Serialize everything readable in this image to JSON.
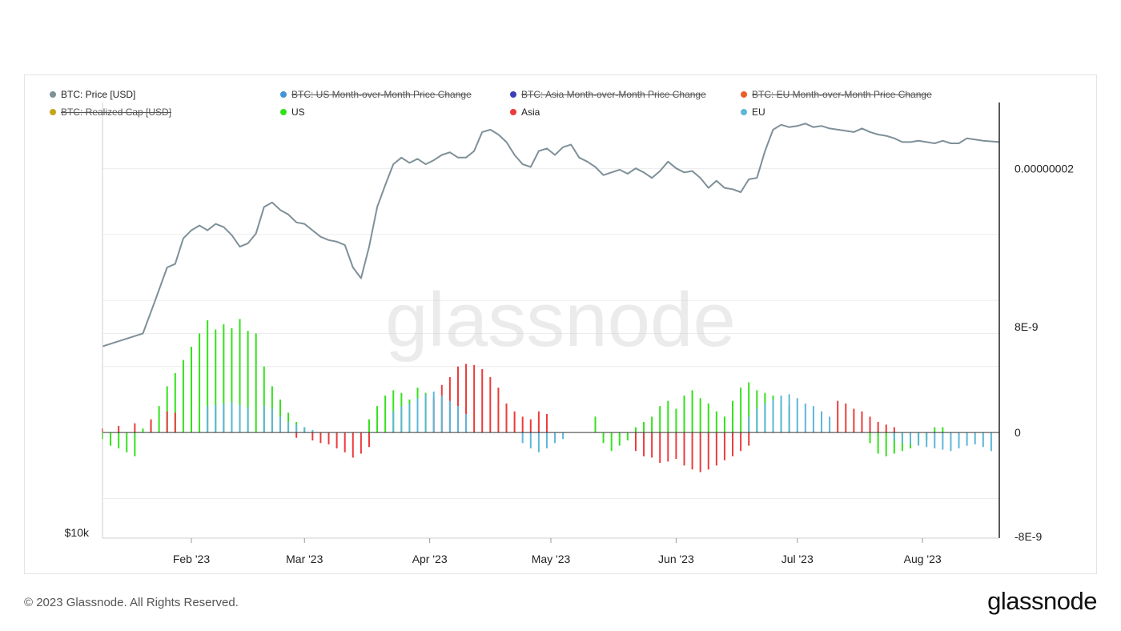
{
  "colors": {
    "price": "#7e9098",
    "us": "#33e21b",
    "asia": "#ec3b3b",
    "eu": "#5db7d9",
    "us_mom": "#4393d9",
    "asia_mom": "#3c3fb5",
    "eu_mom": "#eb5f26",
    "realized": "#c4a519",
    "zero_line": "#3a3a3a"
  },
  "watermark": "glassnode",
  "footer": {
    "copyright": "© 2023 Glassnode. All Rights Reserved.",
    "logo": "glassnode"
  },
  "chart_data": {
    "type": "bar+line",
    "legend": [
      {
        "label": "BTC: Price [USD]",
        "color_key": "price",
        "active": true
      },
      {
        "label": "BTC: US Month-over-Month Price Change",
        "color_key": "us_mom",
        "active": false
      },
      {
        "label": "BTC: Asia Month-over-Month Price Change",
        "color_key": "asia_mom",
        "active": false
      },
      {
        "label": "BTC: EU Month-over-Month Price Change",
        "color_key": "eu_mom",
        "active": false
      },
      {
        "label": "BTC: Realized Cap [USD]",
        "color_key": "realized",
        "active": false
      },
      {
        "label": "US",
        "color_key": "us",
        "active": true
      },
      {
        "label": "Asia",
        "color_key": "asia",
        "active": true
      },
      {
        "label": "EU",
        "color_key": "eu",
        "active": true
      }
    ],
    "x_ticks": [
      "Feb '23",
      "Mar '23",
      "Apr '23",
      "May '23",
      "Jun '23",
      "Jul '23",
      "Aug '23"
    ],
    "x_tick_day": [
      22,
      50,
      81,
      111,
      142,
      172,
      203
    ],
    "x_range_days": [
      0,
      222
    ],
    "left_axis": {
      "label": "$10k",
      "scale": "log",
      "range": [
        10000,
        32500
      ]
    },
    "right_axis": {
      "ticks": [
        "0.00000002",
        "8E-9",
        "0",
        "-8E-9"
      ],
      "tick_values": [
        2e-08,
        8e-09,
        0,
        -8e-09
      ],
      "range": [
        -8e-09,
        2.5e-08
      ]
    },
    "series": [
      {
        "name": "BTC: Price [USD]",
        "type": "line",
        "axis": "left",
        "color_key": "price",
        "points": [
          [
            0,
            16800
          ],
          [
            10,
            17400
          ],
          [
            13,
            19000
          ],
          [
            16,
            20800
          ],
          [
            18,
            21000
          ],
          [
            20,
            22500
          ],
          [
            22,
            23000
          ],
          [
            24,
            23300
          ],
          [
            26,
            23000
          ],
          [
            28,
            23400
          ],
          [
            30,
            23200
          ],
          [
            32,
            22700
          ],
          [
            34,
            22000
          ],
          [
            36,
            22200
          ],
          [
            38,
            22800
          ],
          [
            40,
            24500
          ],
          [
            42,
            24800
          ],
          [
            44,
            24300
          ],
          [
            46,
            24000
          ],
          [
            48,
            23500
          ],
          [
            50,
            23400
          ],
          [
            52,
            23000
          ],
          [
            54,
            22600
          ],
          [
            56,
            22400
          ],
          [
            58,
            22300
          ],
          [
            60,
            22100
          ],
          [
            62,
            20800
          ],
          [
            64,
            20200
          ],
          [
            66,
            22000
          ],
          [
            68,
            24500
          ],
          [
            70,
            26000
          ],
          [
            72,
            27500
          ],
          [
            74,
            28000
          ],
          [
            76,
            27600
          ],
          [
            78,
            27900
          ],
          [
            80,
            27500
          ],
          [
            82,
            27800
          ],
          [
            84,
            28200
          ],
          [
            86,
            28400
          ],
          [
            88,
            28000
          ],
          [
            90,
            28000
          ],
          [
            92,
            28500
          ],
          [
            94,
            30000
          ],
          [
            96,
            30200
          ],
          [
            98,
            29800
          ],
          [
            100,
            29200
          ],
          [
            102,
            28200
          ],
          [
            104,
            27500
          ],
          [
            106,
            27300
          ],
          [
            108,
            28500
          ],
          [
            110,
            28700
          ],
          [
            112,
            28200
          ],
          [
            114,
            28800
          ],
          [
            116,
            29000
          ],
          [
            118,
            28000
          ],
          [
            120,
            27700
          ],
          [
            122,
            27300
          ],
          [
            124,
            26700
          ],
          [
            126,
            26900
          ],
          [
            128,
            27100
          ],
          [
            130,
            26800
          ],
          [
            132,
            27200
          ],
          [
            134,
            26900
          ],
          [
            136,
            26500
          ],
          [
            138,
            27000
          ],
          [
            140,
            27700
          ],
          [
            142,
            27200
          ],
          [
            144,
            26900
          ],
          [
            146,
            27000
          ],
          [
            148,
            26500
          ],
          [
            150,
            25800
          ],
          [
            152,
            26300
          ],
          [
            154,
            25800
          ],
          [
            156,
            25700
          ],
          [
            158,
            25500
          ],
          [
            160,
            26400
          ],
          [
            162,
            26500
          ],
          [
            164,
            28500
          ],
          [
            166,
            30200
          ],
          [
            168,
            30600
          ],
          [
            170,
            30400
          ],
          [
            172,
            30500
          ],
          [
            174,
            30700
          ],
          [
            176,
            30400
          ],
          [
            178,
            30500
          ],
          [
            180,
            30300
          ],
          [
            182,
            30200
          ],
          [
            184,
            30100
          ],
          [
            186,
            30000
          ],
          [
            188,
            30300
          ],
          [
            190,
            30000
          ],
          [
            192,
            29800
          ],
          [
            194,
            29700
          ],
          [
            196,
            29500
          ],
          [
            198,
            29200
          ],
          [
            200,
            29200
          ],
          [
            202,
            29300
          ],
          [
            204,
            29200
          ],
          [
            206,
            29100
          ],
          [
            208,
            29300
          ],
          [
            210,
            29100
          ],
          [
            212,
            29100
          ],
          [
            214,
            29500
          ],
          [
            216,
            29400
          ],
          [
            218,
            29300
          ],
          [
            222,
            29200
          ]
        ]
      },
      {
        "name": "US",
        "type": "bar",
        "axis": "right",
        "color_key": "us",
        "values_by_day": [
          [
            0,
            -5e-10
          ],
          [
            2,
            -1e-09
          ],
          [
            4,
            -1.2e-09
          ],
          [
            6,
            -1.5e-09
          ],
          [
            8,
            -1.8e-09
          ],
          [
            10,
            3e-10
          ],
          [
            12,
            8e-10
          ],
          [
            14,
            2e-09
          ],
          [
            16,
            3.5e-09
          ],
          [
            18,
            4.5e-09
          ],
          [
            20,
            5.5e-09
          ],
          [
            22,
            6.5e-09
          ],
          [
            24,
            7.5e-09
          ],
          [
            26,
            8.5e-09
          ],
          [
            28,
            7.8e-09
          ],
          [
            30,
            8.2e-09
          ],
          [
            32,
            7.9e-09
          ],
          [
            34,
            8.6e-09
          ],
          [
            36,
            7.7e-09
          ],
          [
            38,
            7.5e-09
          ],
          [
            40,
            5e-09
          ],
          [
            42,
            3.5e-09
          ],
          [
            44,
            2.5e-09
          ],
          [
            46,
            1.5e-09
          ],
          [
            48,
            8e-10
          ],
          [
            50,
            4e-10
          ],
          [
            66,
            1e-09
          ],
          [
            68,
            2e-09
          ],
          [
            70,
            2.8e-09
          ],
          [
            72,
            3.2e-09
          ],
          [
            74,
            3e-09
          ],
          [
            76,
            2.5e-09
          ],
          [
            78,
            3.4e-09
          ],
          [
            80,
            3e-09
          ],
          [
            122,
            1.2e-09
          ],
          [
            124,
            -8e-10
          ],
          [
            126,
            -1.4e-09
          ],
          [
            128,
            -1e-09
          ],
          [
            130,
            -6e-10
          ],
          [
            132,
            4e-10
          ],
          [
            134,
            8e-10
          ],
          [
            136,
            1.2e-09
          ],
          [
            138,
            2e-09
          ],
          [
            140,
            2.4e-09
          ],
          [
            142,
            1.8e-09
          ],
          [
            144,
            2.8e-09
          ],
          [
            146,
            3.2e-09
          ],
          [
            148,
            2.6e-09
          ],
          [
            150,
            2.2e-09
          ],
          [
            152,
            1.6e-09
          ],
          [
            154,
            1.2e-09
          ],
          [
            156,
            2.4e-09
          ],
          [
            158,
            3.4e-09
          ],
          [
            160,
            3.8e-09
          ],
          [
            162,
            3.2e-09
          ],
          [
            164,
            3e-09
          ],
          [
            166,
            2.8e-09
          ],
          [
            168,
            2.4e-09
          ],
          [
            170,
            2e-09
          ],
          [
            190,
            -8e-10
          ],
          [
            192,
            -1.6e-09
          ],
          [
            194,
            -1.8e-09
          ],
          [
            196,
            -1.6e-09
          ],
          [
            198,
            -1.4e-09
          ],
          [
            200,
            -1.2e-09
          ],
          [
            202,
            -8e-10
          ],
          [
            204,
            -6e-10
          ],
          [
            206,
            4e-10
          ],
          [
            208,
            4e-10
          ]
        ]
      },
      {
        "name": "Asia",
        "type": "bar",
        "axis": "right",
        "color_key": "asia",
        "values_by_day": [
          [
            0,
            3e-10
          ],
          [
            4,
            5e-10
          ],
          [
            8,
            7e-10
          ],
          [
            12,
            1e-09
          ],
          [
            16,
            1.6e-09
          ],
          [
            18,
            1.5e-09
          ],
          [
            48,
            -4e-10
          ],
          [
            52,
            -6e-10
          ],
          [
            54,
            -8e-10
          ],
          [
            56,
            -9e-10
          ],
          [
            58,
            -1.2e-09
          ],
          [
            60,
            -1.5e-09
          ],
          [
            62,
            -1.9e-09
          ],
          [
            64,
            -1.6e-09
          ],
          [
            66,
            -1.1e-09
          ],
          [
            82,
            2.6e-09
          ],
          [
            84,
            3.6e-09
          ],
          [
            86,
            4.2e-09
          ],
          [
            88,
            5e-09
          ],
          [
            90,
            5.2e-09
          ],
          [
            92,
            5.1e-09
          ],
          [
            94,
            4.8e-09
          ],
          [
            96,
            4.2e-09
          ],
          [
            98,
            3.4e-09
          ],
          [
            100,
            2.2e-09
          ],
          [
            102,
            1.6e-09
          ],
          [
            104,
            1.2e-09
          ],
          [
            106,
            1e-09
          ],
          [
            108,
            1.6e-09
          ],
          [
            110,
            1.4e-09
          ],
          [
            132,
            -1.4e-09
          ],
          [
            134,
            -1.8e-09
          ],
          [
            136,
            -1.9e-09
          ],
          [
            138,
            -2.3e-09
          ],
          [
            140,
            -2.2e-09
          ],
          [
            142,
            -2e-09
          ],
          [
            144,
            -2.5e-09
          ],
          [
            146,
            -2.8e-09
          ],
          [
            148,
            -3e-09
          ],
          [
            150,
            -2.8e-09
          ],
          [
            152,
            -2.5e-09
          ],
          [
            154,
            -2.1e-09
          ],
          [
            156,
            -1.8e-09
          ],
          [
            158,
            -1.4e-09
          ],
          [
            160,
            -1e-09
          ],
          [
            182,
            2.4e-09
          ],
          [
            184,
            2.2e-09
          ],
          [
            186,
            1.8e-09
          ],
          [
            188,
            1.6e-09
          ],
          [
            190,
            1.2e-09
          ],
          [
            192,
            8e-10
          ],
          [
            194,
            6e-10
          ],
          [
            196,
            4e-10
          ]
        ]
      },
      {
        "name": "EU",
        "type": "bar",
        "axis": "right",
        "color_key": "eu",
        "values_by_day": [
          [
            26,
            2e-09
          ],
          [
            28,
            2.1e-09
          ],
          [
            30,
            2.2e-09
          ],
          [
            32,
            2.3e-09
          ],
          [
            34,
            2.1e-09
          ],
          [
            36,
            1.9e-09
          ],
          [
            40,
            2e-09
          ],
          [
            42,
            1.8e-09
          ],
          [
            44,
            1.2e-09
          ],
          [
            46,
            8e-10
          ],
          [
            48,
            6e-10
          ],
          [
            50,
            4e-10
          ],
          [
            52,
            2e-10
          ],
          [
            72,
            1.6e-09
          ],
          [
            74,
            2e-09
          ],
          [
            76,
            2.2e-09
          ],
          [
            78,
            2.6e-09
          ],
          [
            80,
            2.9e-09
          ],
          [
            82,
            3.1e-09
          ],
          [
            84,
            2.8e-09
          ],
          [
            86,
            2.4e-09
          ],
          [
            88,
            2e-09
          ],
          [
            90,
            1.4e-09
          ],
          [
            104,
            -8e-10
          ],
          [
            106,
            -1.2e-09
          ],
          [
            108,
            -1.5e-09
          ],
          [
            110,
            -1.2e-09
          ],
          [
            112,
            -8e-10
          ],
          [
            114,
            -5e-10
          ],
          [
            160,
            1.2e-09
          ],
          [
            162,
            1.8e-09
          ],
          [
            164,
            2.2e-09
          ],
          [
            166,
            2.5e-09
          ],
          [
            168,
            2.8e-09
          ],
          [
            170,
            2.9e-09
          ],
          [
            172,
            2.6e-09
          ],
          [
            174,
            2.2e-09
          ],
          [
            176,
            2e-09
          ],
          [
            178,
            1.6e-09
          ],
          [
            180,
            1.2e-09
          ],
          [
            196,
            -6e-10
          ],
          [
            198,
            -8e-10
          ],
          [
            200,
            -9e-10
          ],
          [
            202,
            -1e-09
          ],
          [
            204,
            -1.1e-09
          ],
          [
            206,
            -1.2e-09
          ],
          [
            208,
            -1.3e-09
          ],
          [
            210,
            -1.4e-09
          ],
          [
            212,
            -1.2e-09
          ],
          [
            214,
            -1e-09
          ],
          [
            216,
            -9e-10
          ],
          [
            218,
            -1.1e-09
          ],
          [
            220,
            -1.4e-09
          ]
        ]
      }
    ]
  }
}
